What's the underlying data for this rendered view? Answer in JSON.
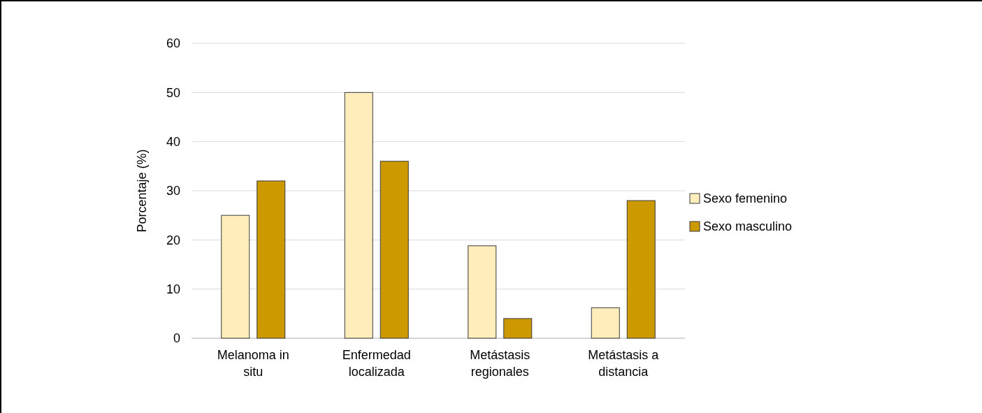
{
  "chart_data": {
    "type": "bar",
    "ylabel": "Porcentaje (%)",
    "categories": [
      "Melanoma in situ",
      "Enfermedad localizada",
      "Metástasis regionales",
      "Metástasis a distancia"
    ],
    "series": [
      {
        "name": "Sexo femenino",
        "color": "#ffeebb",
        "values": [
          25,
          50,
          18.8,
          6.2
        ]
      },
      {
        "name": "Sexo masculino",
        "color": "#cc9900",
        "values": [
          32,
          36,
          4,
          28
        ]
      }
    ],
    "ylim": [
      0,
      60
    ],
    "yticks": [
      0,
      10,
      20,
      30,
      40,
      50,
      60
    ],
    "grid": "y",
    "legend": "right"
  }
}
